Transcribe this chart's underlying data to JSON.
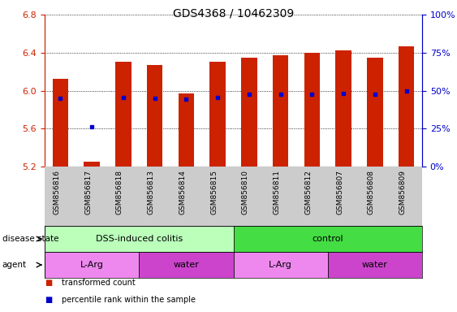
{
  "title": "GDS4368 / 10462309",
  "samples": [
    "GSM856816",
    "GSM856817",
    "GSM856818",
    "GSM856813",
    "GSM856814",
    "GSM856815",
    "GSM856810",
    "GSM856811",
    "GSM856812",
    "GSM856807",
    "GSM856808",
    "GSM856809"
  ],
  "bar_base": 5.2,
  "bar_tops": [
    6.12,
    5.25,
    6.3,
    6.27,
    5.97,
    6.3,
    6.35,
    6.37,
    6.4,
    6.42,
    6.35,
    6.47
  ],
  "percentile_values": [
    5.92,
    5.62,
    5.93,
    5.92,
    5.91,
    5.93,
    5.96,
    5.96,
    5.96,
    5.97,
    5.96,
    6.0
  ],
  "ylim": [
    5.2,
    6.8
  ],
  "yticks_left": [
    5.2,
    5.6,
    6.0,
    6.4,
    6.8
  ],
  "yticks_right": [
    0,
    25,
    50,
    75,
    100
  ],
  "bar_color": "#cc2200",
  "percentile_color": "#0000cc",
  "bar_width": 0.5,
  "disease_state_groups": [
    {
      "label": "DSS-induced colitis",
      "start": 0,
      "end": 6,
      "color": "#bbffbb"
    },
    {
      "label": "control",
      "start": 6,
      "end": 12,
      "color": "#44dd44"
    }
  ],
  "agent_groups": [
    {
      "label": "L-Arg",
      "start": 0,
      "end": 3,
      "color": "#ee88ee"
    },
    {
      "label": "water",
      "start": 3,
      "end": 6,
      "color": "#cc44cc"
    },
    {
      "label": "L-Arg",
      "start": 6,
      "end": 9,
      "color": "#ee88ee"
    },
    {
      "label": "water",
      "start": 9,
      "end": 12,
      "color": "#cc44cc"
    }
  ],
  "left_axis_color": "#cc2200",
  "right_axis_color": "#0000cc",
  "tick_label_bg": "#cccccc",
  "legend_items": [
    {
      "label": "transformed count",
      "color": "#cc2200"
    },
    {
      "label": "percentile rank within the sample",
      "color": "#0000cc"
    }
  ],
  "disease_label": "disease state",
  "agent_label": "agent"
}
